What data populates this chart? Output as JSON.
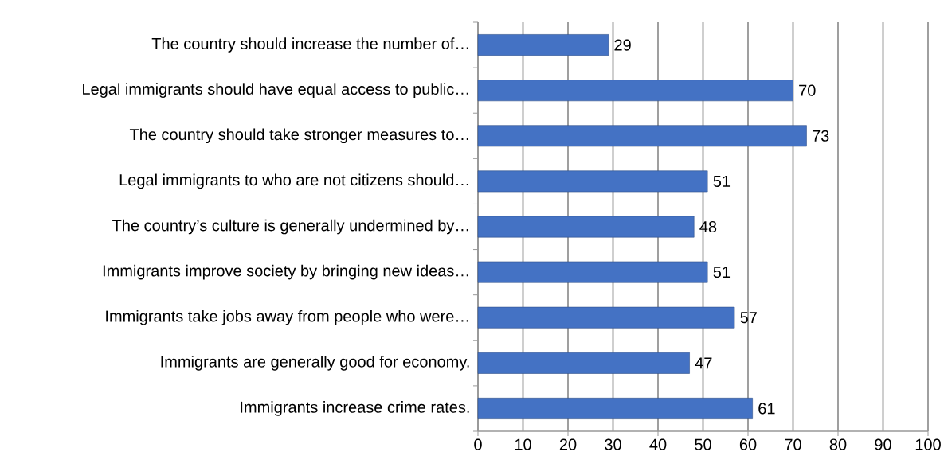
{
  "chart_data": {
    "type": "bar",
    "orientation": "horizontal",
    "categories": [
      "The country should increase the number of…",
      "Legal immigrants should have equal access to public…",
      "The country should take stronger measures to…",
      "Legal immigrants to who are not citizens should…",
      "The country’s culture is generally undermined by…",
      "Immigrants improve society by bringing new ideas…",
      "Immigrants take jobs away from people who were…",
      "Immigrants are generally good for economy.",
      "Immigrants increase crime rates."
    ],
    "values": [
      29,
      70,
      73,
      51,
      48,
      51,
      57,
      47,
      61
    ],
    "color": "#4472c4",
    "xlim": [
      0,
      100
    ],
    "xticks": [
      0,
      10,
      20,
      30,
      40,
      50,
      60,
      70,
      80,
      90,
      100
    ],
    "grid": "x",
    "data_labels": true
  }
}
